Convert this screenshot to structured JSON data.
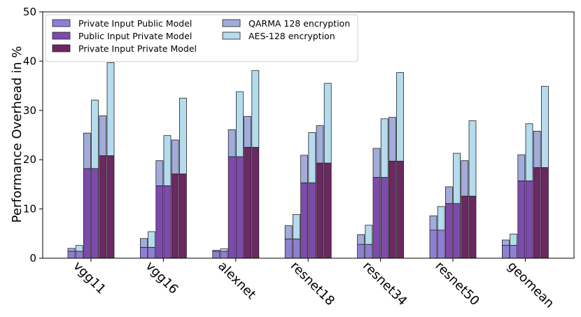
{
  "chart_data": {
    "type": "bar",
    "title": "",
    "xlabel": "",
    "ylabel": "Performance Overhead in %",
    "ylim": [
      0,
      50
    ],
    "yticks": [
      0,
      10,
      20,
      30,
      40,
      50
    ],
    "categories": [
      "vgg11",
      "vgg16",
      "alexnet",
      "resnet18",
      "resnet34",
      "resnet50",
      "geomean"
    ],
    "series": [
      {
        "name": "Private Input Public Model",
        "color": "#8f7fd4"
      },
      {
        "name": "Public Input Private Model",
        "color": "#7e4aad"
      },
      {
        "name": "Private Input Private Model",
        "color": "#6b2862"
      }
    ],
    "encryption": [
      {
        "name": "QARMA 128 encryption",
        "color": "#a2acdb"
      },
      {
        "name": "AES-128 encryption",
        "color": "#b5dbee"
      }
    ],
    "legend_order": [
      "Private Input Public Model",
      "Public Input Private Model",
      "Private Input Private Model",
      "QARMA 128 encryption",
      "AES-128 encryption"
    ],
    "legend_position": "top-left",
    "data": {
      "vgg11": [
        {
          "base": 1.4,
          "qarma": 2.0,
          "aes": 2.6
        },
        {
          "base": 18.2,
          "qarma": 25.4,
          "aes": 32.1
        },
        {
          "base": 20.8,
          "qarma": 28.9,
          "aes": 39.7
        }
      ],
      "vgg16": [
        {
          "base": 2.2,
          "qarma": 4.0,
          "aes": 5.4
        },
        {
          "base": 14.7,
          "qarma": 19.8,
          "aes": 24.9
        },
        {
          "base": 17.1,
          "qarma": 24.0,
          "aes": 32.5
        }
      ],
      "alexnet": [
        {
          "base": 1.4,
          "qarma": 1.6,
          "aes": 1.9
        },
        {
          "base": 20.6,
          "qarma": 26.1,
          "aes": 33.8
        },
        {
          "base": 22.5,
          "qarma": 28.8,
          "aes": 38.1
        }
      ],
      "resnet18": [
        {
          "base": 3.9,
          "qarma": 6.6,
          "aes": 8.9
        },
        {
          "base": 15.3,
          "qarma": 20.9,
          "aes": 25.5
        },
        {
          "base": 19.3,
          "qarma": 26.9,
          "aes": 35.5
        }
      ],
      "resnet34": [
        {
          "base": 2.8,
          "qarma": 4.8,
          "aes": 6.7
        },
        {
          "base": 16.4,
          "qarma": 22.3,
          "aes": 28.3
        },
        {
          "base": 19.7,
          "qarma": 28.6,
          "aes": 37.7
        }
      ],
      "resnet50": [
        {
          "base": 5.7,
          "qarma": 8.6,
          "aes": 10.5
        },
        {
          "base": 11.1,
          "qarma": 14.5,
          "aes": 21.3
        },
        {
          "base": 12.6,
          "qarma": 19.8,
          "aes": 27.9
        }
      ],
      "geomean": [
        {
          "base": 2.6,
          "qarma": 3.7,
          "aes": 4.9
        },
        {
          "base": 15.7,
          "qarma": 21.0,
          "aes": 27.3
        },
        {
          "base": 18.4,
          "qarma": 25.8,
          "aes": 34.9
        }
      ]
    }
  }
}
